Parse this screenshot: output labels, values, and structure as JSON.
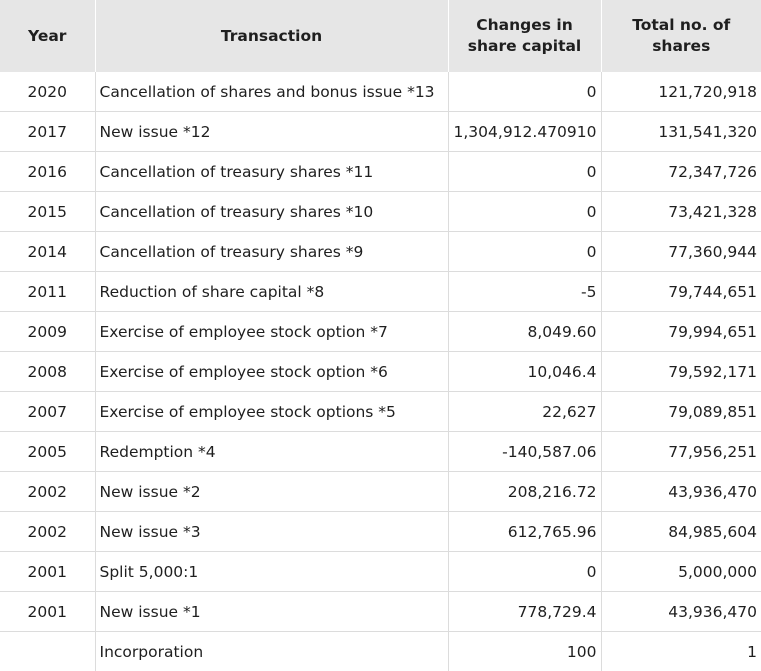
{
  "table": {
    "headers": {
      "year": "Year",
      "transaction": "Transaction",
      "changes": "Changes in share capital",
      "total": "Total no. of shares"
    },
    "rows": [
      {
        "year": "2020",
        "transaction": "Cancellation of shares and bonus issue *13",
        "change": "0",
        "total": "121,720,918"
      },
      {
        "year": "2017",
        "transaction": "New issue *12",
        "change": "1,304,912.470910",
        "total": "131,541,320"
      },
      {
        "year": "2016",
        "transaction": "Cancellation of treasury shares *11",
        "change": "0",
        "total": "72,347,726"
      },
      {
        "year": "2015",
        "transaction": "Cancellation of treasury shares *10",
        "change": "0",
        "total": "73,421,328"
      },
      {
        "year": "2014",
        "transaction": "Cancellation of treasury shares *9",
        "change": "0",
        "total": "77,360,944"
      },
      {
        "year": "2011",
        "transaction": "Reduction of share capital *8",
        "change": "-5",
        "total": "79,744,651"
      },
      {
        "year": "2009",
        "transaction": "Exercise of employee stock option *7",
        "change": "8,049.60",
        "total": "79,994,651"
      },
      {
        "year": "2008",
        "transaction": "Exercise of employee stock option *6",
        "change": "10,046.4",
        "total": "79,592,171"
      },
      {
        "year": "2007",
        "transaction": "Exercise of employee stock options *5",
        "change": "22,627",
        "total": "79,089,851"
      },
      {
        "year": "2005",
        "transaction": "Redemption *4",
        "change": "-140,587.06",
        "total": "77,956,251"
      },
      {
        "year": "2002",
        "transaction": "New issue *2",
        "change": "208,216.72",
        "total": "43,936,470"
      },
      {
        "year": "2002",
        "transaction": "New issue *3",
        "change": "612,765.96",
        "total": "84,985,604"
      },
      {
        "year": "2001",
        "transaction": "Split 5,000:1",
        "change": "0",
        "total": "5,000,000"
      },
      {
        "year": "2001",
        "transaction": "New issue *1",
        "change": "778,729.4",
        "total": "43,936,470"
      },
      {
        "year": "",
        "transaction": "Incorporation",
        "change": "100",
        "total": "1"
      }
    ]
  }
}
